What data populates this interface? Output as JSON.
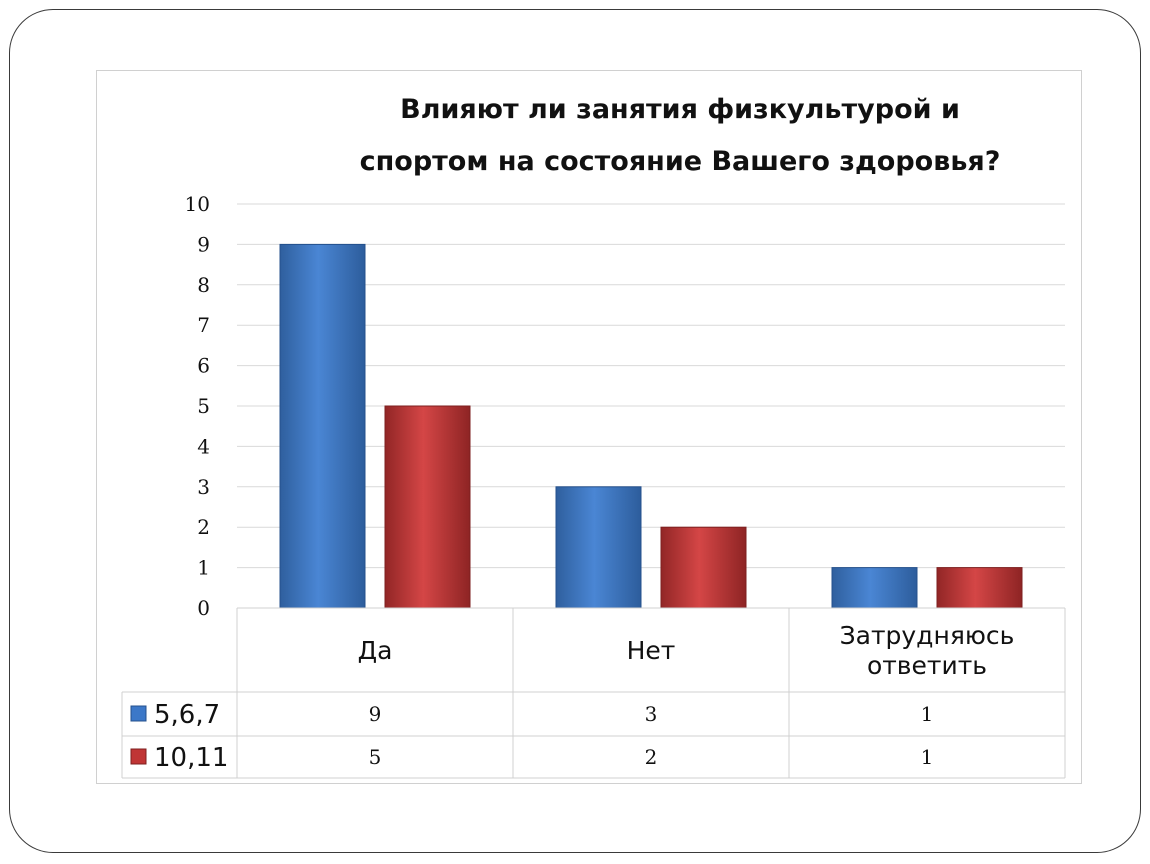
{
  "chart_data": {
    "type": "bar",
    "title_lines": [
      "Влияют ли занятия физкультурой  и",
      "спортом на состояние  Вашего здоровья?"
    ],
    "categories": [
      [
        "Да"
      ],
      [
        "Нет"
      ],
      [
        "Затрудняюсь",
        "ответить"
      ]
    ],
    "series": [
      {
        "name": "5,6,7",
        "values": [
          9,
          3,
          1
        ],
        "color": "#3c78c8"
      },
      {
        "name": "10,11",
        "values": [
          5,
          2,
          1
        ],
        "color": "#c03535"
      }
    ],
    "ylim": [
      0,
      10
    ],
    "yticks": [
      "0",
      "1",
      "2",
      "3",
      "4",
      "5",
      "6",
      "7",
      "8",
      "9",
      "10"
    ],
    "grid": true,
    "legend": "data-table"
  }
}
